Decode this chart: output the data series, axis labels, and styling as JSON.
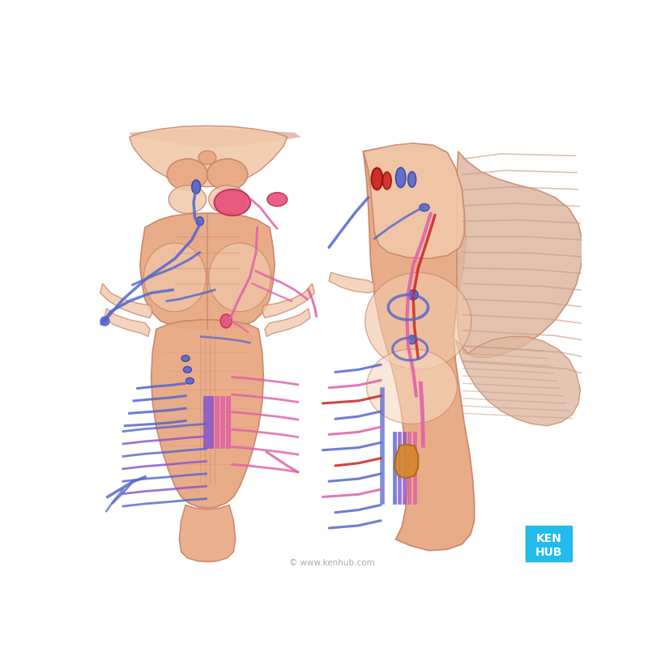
{
  "bg_color": "#ffffff",
  "skin_base": "#e8a882",
  "skin_light": "#f0c8aa",
  "skin_lighter": "#f5d8c0",
  "skin_shadow": "#c8856a",
  "skin_dark": "#b87055",
  "pink_nucleus": "#e8507a",
  "pink_nucleus_dark": "#c03060",
  "pink_nerve": "#e060a8",
  "blue_nerve": "#5566cc",
  "blue_nerve_dark": "#3344aa",
  "purple_nerve": "#8855cc",
  "red_nucleus": "#cc2222",
  "red_dark": "#991111",
  "orange_nucleus": "#d4882a",
  "orange_dark": "#aa6610",
  "kenhub_blue": "#22bbee",
  "copyright_text": "© www.kenhub.com",
  "cerebellum_color": "#ddb8a0",
  "cerebellum_fold": "#c89880",
  "midbrain_top": "#e8c0a0"
}
